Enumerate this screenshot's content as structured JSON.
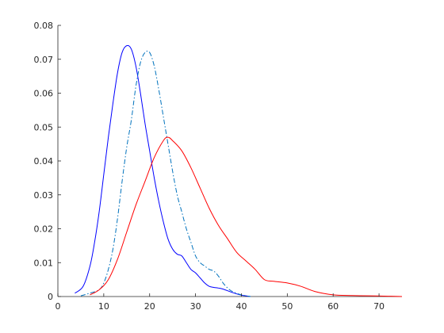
{
  "chart_data": {
    "type": "line",
    "title": "",
    "xlabel": "",
    "ylabel": "",
    "xlim": [
      0,
      75
    ],
    "ylim": [
      0,
      0.08
    ],
    "xticks": [
      0,
      10,
      20,
      30,
      40,
      50,
      60,
      70
    ],
    "xtick_labels": [
      "0",
      "10",
      "20",
      "30",
      "40",
      "50",
      "60",
      "70"
    ],
    "yticks": [
      0,
      0.01,
      0.02,
      0.03,
      0.04,
      0.05,
      0.06,
      0.07,
      0.08
    ],
    "ytick_labels": [
      "0",
      "0.01",
      "0.02",
      "0.03",
      "0.04",
      "0.05",
      "0.06",
      "0.07",
      "0.08"
    ],
    "grid": false,
    "legend": false,
    "series": [
      {
        "color": "#0000ff",
        "dash": "solid",
        "x": [
          3.7,
          5.5,
          7,
          8,
          9,
          10,
          11,
          12,
          13,
          14,
          15,
          16,
          17,
          18,
          19,
          20,
          21,
          22,
          23,
          24,
          25,
          26,
          27,
          28,
          29,
          30,
          31,
          32,
          33,
          34,
          35,
          36,
          38,
          40,
          42
        ],
        "y": [
          0.001,
          0.003,
          0.009,
          0.016,
          0.025,
          0.036,
          0.047,
          0.057,
          0.066,
          0.072,
          0.074,
          0.073,
          0.068,
          0.06,
          0.051,
          0.043,
          0.035,
          0.028,
          0.022,
          0.017,
          0.014,
          0.0125,
          0.012,
          0.01,
          0.008,
          0.007,
          0.0055,
          0.004,
          0.003,
          0.0027,
          0.0025,
          0.0022,
          0.0012,
          0.0004,
          0
        ]
      },
      {
        "color": "#0072bd",
        "dash": "dashdot",
        "x": [
          5,
          7,
          9,
          10,
          11,
          12,
          13,
          14,
          15,
          16,
          17,
          18,
          19,
          20,
          21,
          22,
          23,
          24,
          25,
          26,
          27,
          28,
          29,
          30,
          31,
          32,
          33,
          34,
          35,
          36,
          37,
          38,
          40,
          42
        ],
        "y": [
          0.0002,
          0.001,
          0.002,
          0.004,
          0.008,
          0.014,
          0.023,
          0.034,
          0.044,
          0.052,
          0.062,
          0.069,
          0.072,
          0.072,
          0.068,
          0.061,
          0.053,
          0.045,
          0.037,
          0.03,
          0.025,
          0.02,
          0.016,
          0.012,
          0.01,
          0.009,
          0.008,
          0.0075,
          0.006,
          0.004,
          0.0025,
          0.0015,
          0.0005,
          0
        ]
      },
      {
        "color": "#ff0000",
        "dash": "solid",
        "x": [
          7,
          9,
          11,
          13,
          15,
          17,
          19,
          21,
          23,
          24,
          25,
          27,
          29,
          31,
          33,
          35,
          37,
          39,
          41,
          43,
          45,
          47,
          50,
          53,
          56,
          60,
          64,
          68,
          72,
          75
        ],
        "y": [
          0.0005,
          0.002,
          0.005,
          0.011,
          0.019,
          0.027,
          0.034,
          0.041,
          0.046,
          0.047,
          0.046,
          0.043,
          0.038,
          0.032,
          0.026,
          0.021,
          0.017,
          0.013,
          0.0105,
          0.008,
          0.005,
          0.0045,
          0.004,
          0.003,
          0.0015,
          0.0005,
          0.0003,
          0.0002,
          0.0001,
          0
        ]
      }
    ]
  }
}
